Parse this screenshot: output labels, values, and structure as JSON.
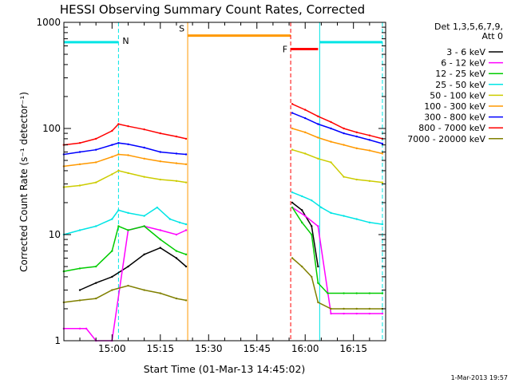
{
  "chart_data": {
    "type": "line",
    "title": "HESSI Observing Summary Count Rates, Corrected",
    "xlabel": "Start Time (01-Mar-13 14:45:02)",
    "ylabel": "Corrected Count Rate (s⁻¹ detector⁻¹)",
    "y_scale": "log",
    "ylim": [
      1,
      1000
    ],
    "xlim": [
      "14:45:02",
      "16:25:00"
    ],
    "x_ticks": [
      "15:00",
      "15:15",
      "15:30",
      "15:45",
      "16:00",
      "16:15"
    ],
    "y_ticks": [
      "1",
      "10",
      "100",
      "1000"
    ],
    "legend_title": [
      "Det 1,3,5,6,7,9,",
      "Att 0"
    ],
    "legend_position": "right",
    "footer": "1-Mar-2013 19:57",
    "gaps": [
      [
        "15:23:30",
        "15:55:30"
      ]
    ],
    "series": [
      {
        "name": "3 - 6 keV",
        "color": "#000000",
        "x": [
          "14:50",
          "14:55",
          "15:00",
          "15:05",
          "15:10",
          "15:15",
          "15:20",
          "15:23",
          "15:56",
          "15:59",
          "16:02",
          "16:04"
        ],
        "y": [
          3.0,
          3.5,
          4.0,
          5.0,
          6.5,
          7.5,
          6.0,
          5.0,
          20,
          17,
          12,
          5
        ]
      },
      {
        "name": "6 - 12 keV",
        "color": "#ff00ff",
        "x": [
          "14:45",
          "14:50",
          "14:52",
          "14:55",
          "15:00",
          "15:05",
          "15:10",
          "15:15",
          "15:20",
          "15:23",
          "15:56",
          "16:00",
          "16:04",
          "16:08",
          "16:12",
          "16:16",
          "16:20",
          "16:24"
        ],
        "y": [
          1.3,
          1.3,
          1.3,
          1.0,
          1.0,
          11,
          12,
          11,
          10,
          11,
          18,
          15,
          12,
          1.8,
          1.8,
          1.8,
          1.8,
          1.8
        ]
      },
      {
        "name": "12 - 25 keV",
        "color": "#00cc00",
        "x": [
          "14:45",
          "14:50",
          "14:55",
          "15:00",
          "15:02",
          "15:05",
          "15:10",
          "15:15",
          "15:20",
          "15:23",
          "15:56",
          "15:59",
          "16:02",
          "16:04",
          "16:07",
          "16:12",
          "16:16",
          "16:20",
          "16:24"
        ],
        "y": [
          4.5,
          4.8,
          5.0,
          7.0,
          12,
          11,
          12,
          9,
          7,
          6.5,
          18,
          13,
          10,
          3.5,
          2.8,
          2.8,
          2.8,
          2.8,
          2.8
        ]
      },
      {
        "name": "25 - 50 keV",
        "color": "#00e5e5",
        "x": [
          "14:45",
          "14:50",
          "14:55",
          "15:00",
          "15:02",
          "15:05",
          "15:10",
          "15:14",
          "15:18",
          "15:21",
          "15:23",
          "15:56",
          "15:59",
          "16:02",
          "16:05",
          "16:08",
          "16:12",
          "16:16",
          "16:20",
          "16:24"
        ],
        "y": [
          10,
          11,
          12,
          14,
          17,
          16,
          15,
          18,
          14,
          13,
          12.5,
          25,
          23,
          21,
          18,
          16,
          15,
          14,
          13,
          12.5
        ]
      },
      {
        "name": "50 - 100 keV",
        "color": "#cccc00",
        "x": [
          "14:45",
          "14:50",
          "14:55",
          "15:00",
          "15:02",
          "15:05",
          "15:10",
          "15:15",
          "15:20",
          "15:23",
          "15:56",
          "16:00",
          "16:04",
          "16:08",
          "16:12",
          "16:16",
          "16:20",
          "16:24"
        ],
        "y": [
          28,
          29,
          31,
          37,
          40,
          38,
          35,
          33,
          32,
          31,
          63,
          58,
          52,
          48,
          35,
          33,
          32,
          31
        ]
      },
      {
        "name": "100 - 300 keV",
        "color": "#ff9900",
        "x": [
          "14:45",
          "14:50",
          "14:55",
          "15:00",
          "15:02",
          "15:05",
          "15:10",
          "15:15",
          "15:20",
          "15:23",
          "15:56",
          "16:00",
          "16:04",
          "16:08",
          "16:12",
          "16:16",
          "16:20",
          "16:24"
        ],
        "y": [
          44,
          46,
          48,
          54,
          57,
          56,
          52,
          49,
          47,
          46,
          100,
          92,
          82,
          75,
          70,
          65,
          62,
          58
        ]
      },
      {
        "name": "300 - 800 keV",
        "color": "#0000ff",
        "x": [
          "14:45",
          "14:50",
          "14:55",
          "15:00",
          "15:02",
          "15:05",
          "15:10",
          "15:15",
          "15:20",
          "15:23",
          "15:56",
          "16:00",
          "16:04",
          "16:08",
          "16:12",
          "16:16",
          "16:20",
          "16:24"
        ],
        "y": [
          57,
          60,
          63,
          70,
          73,
          71,
          66,
          60,
          58,
          57,
          140,
          125,
          110,
          100,
          90,
          84,
          78,
          72
        ]
      },
      {
        "name": "800 - 7000 keV",
        "color": "#ff0000",
        "x": [
          "14:45",
          "14:50",
          "14:55",
          "15:00",
          "15:02",
          "15:05",
          "15:10",
          "15:15",
          "15:20",
          "15:23",
          "15:56",
          "16:00",
          "16:04",
          "16:08",
          "16:12",
          "16:16",
          "16:20",
          "16:24"
        ],
        "y": [
          70,
          73,
          80,
          95,
          110,
          105,
          98,
          90,
          84,
          80,
          170,
          150,
          130,
          115,
          100,
          92,
          86,
          80
        ]
      },
      {
        "name": "7000 - 20000 keV",
        "color": "#808000",
        "x": [
          "14:45",
          "14:50",
          "14:55",
          "15:00",
          "15:05",
          "15:10",
          "15:15",
          "15:20",
          "15:23",
          "15:56",
          "15:59",
          "16:02",
          "16:04",
          "16:08",
          "16:12",
          "16:16",
          "16:20",
          "16:24"
        ],
        "y": [
          2.3,
          2.4,
          2.5,
          3.0,
          3.3,
          3.0,
          2.8,
          2.5,
          2.4,
          6.0,
          5.0,
          4.0,
          2.3,
          2.0,
          2.0,
          2.0,
          2.0,
          2.0
        ]
      }
    ],
    "flags": [
      {
        "label": "N",
        "color": "#00e5e5",
        "level": 650,
        "segments": [
          [
            "14:45:02",
            "15:02:00"
          ],
          [
            "16:04:30",
            "16:24:00"
          ]
        ],
        "markers": [
          "15:02:00",
          "16:24:00"
        ],
        "marker_style": "dashed",
        "solid_markers": [
          "16:04:30"
        ],
        "show_label_at": "15:02:00"
      },
      {
        "label": "S",
        "color": "#ff9900",
        "level": 750,
        "segments": [
          [
            "15:23:30",
            "15:55:30"
          ]
        ],
        "markers": [
          "15:23:30"
        ],
        "marker_style": "solid",
        "show_label_at": "15:23:30"
      },
      {
        "label": "F",
        "color": "#ff0000",
        "level": 560,
        "segments": [
          [
            "15:55:30",
            "16:04:00"
          ]
        ],
        "markers": [
          "15:55:30"
        ],
        "marker_style": "dashed",
        "show_label_at": "15:55:30"
      }
    ]
  }
}
